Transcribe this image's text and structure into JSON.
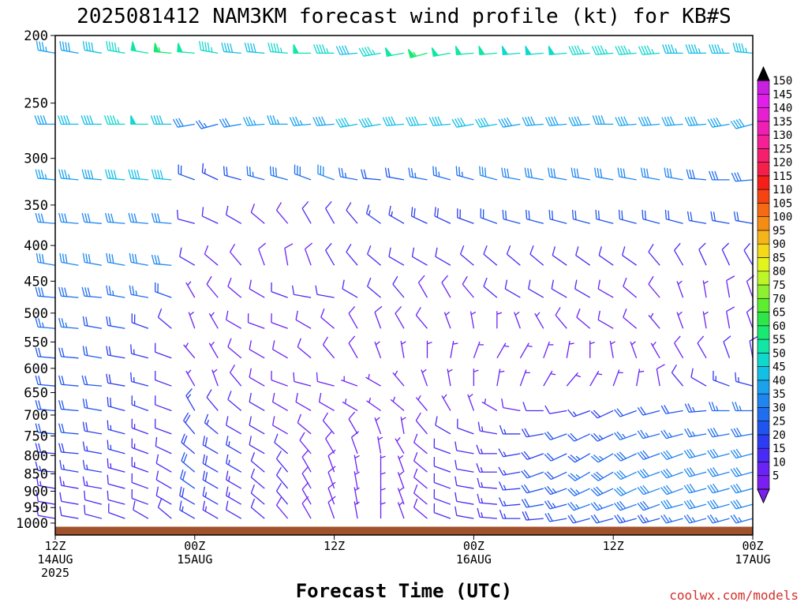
{
  "chart_data": {
    "type": "wind-barb time-height profile",
    "title": "2025081412 NAM3KM forecast wind profile (kt) for KB#S",
    "xlabel": "Forecast Time (UTC)",
    "credit": "coolwx.com/models",
    "y_axis": {
      "quantity": "pressure",
      "units": "hPa",
      "scale": "log",
      "inverted": true,
      "range": [
        200,
        1040
      ],
      "ticks": [
        200,
        250,
        300,
        350,
        400,
        450,
        500,
        550,
        600,
        650,
        700,
        750,
        800,
        850,
        900,
        950,
        1000
      ]
    },
    "x_axis": {
      "range_hours": [
        0,
        60
      ],
      "ticks": [
        {
          "hour": 0,
          "lines": [
            "12Z",
            "14AUG",
            "2025"
          ]
        },
        {
          "hour": 12,
          "lines": [
            "00Z",
            "15AUG"
          ]
        },
        {
          "hour": 24,
          "lines": [
            "12Z"
          ]
        },
        {
          "hour": 36,
          "lines": [
            "00Z",
            "16AUG"
          ]
        },
        {
          "hour": 48,
          "lines": [
            "12Z"
          ]
        },
        {
          "hour": 60,
          "lines": [
            "00Z",
            "17AUG"
          ]
        }
      ]
    },
    "ground": {
      "pressure": 1012,
      "color": "#a0522d"
    },
    "colorbar": {
      "levels": [
        5,
        10,
        15,
        20,
        25,
        30,
        35,
        40,
        45,
        50,
        55,
        60,
        65,
        70,
        75,
        80,
        85,
        90,
        95,
        100,
        105,
        110,
        115,
        120,
        125,
        130,
        135,
        140,
        145,
        150
      ],
      "colors": [
        "#7a1ff0",
        "#6a22f5",
        "#4a2af5",
        "#2d3cf0",
        "#1f55ee",
        "#1f6ef0",
        "#1f86f0",
        "#1aa2ee",
        "#14bfe6",
        "#10d8cc",
        "#10e6a6",
        "#1ae870",
        "#2ee64a",
        "#5eee30",
        "#8ef030",
        "#bef528",
        "#e2f51e",
        "#f5d81a",
        "#f5b41a",
        "#f58c14",
        "#f56a12",
        "#f54412",
        "#f51f1a",
        "#f51f4a",
        "#f51f6e",
        "#f51f96",
        "#f01fb4",
        "#e61fd2",
        "#e21fea",
        "#c81fe0"
      ]
    },
    "levels_hpa": [
      212,
      268,
      322,
      372,
      427,
      475,
      526,
      580,
      636,
      690,
      745,
      795,
      845,
      892,
      940,
      985
    ],
    "times_hours": [
      0,
      2,
      4,
      6,
      8,
      10,
      12,
      14,
      16,
      18,
      20,
      22,
      24,
      26,
      28,
      30,
      32,
      34,
      36,
      38,
      40,
      42,
      44,
      46,
      48,
      50,
      52,
      54,
      56,
      58,
      60
    ],
    "wind": [
      {
        "p": 212,
        "dir": [
          280,
          280,
          280,
          280,
          280,
          275,
          275,
          280,
          275,
          275,
          275,
          270,
          270,
          265,
          260,
          260,
          255,
          260,
          265,
          265,
          265,
          265,
          265,
          265,
          265,
          265,
          265,
          270,
          270,
          270,
          275
        ],
        "spd": [
          35,
          38,
          42,
          45,
          50,
          55,
          50,
          45,
          40,
          40,
          45,
          50,
          45,
          40,
          45,
          50,
          55,
          50,
          50,
          50,
          48,
          48,
          48,
          45,
          45,
          45,
          45,
          43,
          43,
          43,
          43
        ]
      },
      {
        "p": 268,
        "dir": [
          270,
          270,
          270,
          270,
          270,
          270,
          260,
          255,
          260,
          265,
          270,
          265,
          265,
          260,
          260,
          265,
          265,
          265,
          260,
          260,
          260,
          265,
          265,
          265,
          270,
          265,
          265,
          265,
          265,
          260,
          255
        ],
        "spd": [
          38,
          40,
          42,
          45,
          48,
          40,
          30,
          25,
          30,
          35,
          35,
          35,
          38,
          40,
          40,
          40,
          40,
          42,
          42,
          40,
          38,
          38,
          38,
          38,
          38,
          38,
          38,
          38,
          38,
          38,
          38
        ]
      },
      {
        "p": 322,
        "dir": [
          275,
          275,
          275,
          275,
          275,
          275,
          290,
          295,
          285,
          285,
          285,
          290,
          290,
          280,
          275,
          280,
          280,
          285,
          285,
          285,
          280,
          280,
          280,
          280,
          280,
          280,
          280,
          280,
          275,
          270,
          265
        ],
        "spd": [
          35,
          35,
          38,
          40,
          42,
          40,
          20,
          15,
          22,
          25,
          28,
          28,
          30,
          25,
          22,
          22,
          25,
          25,
          25,
          30,
          30,
          30,
          30,
          30,
          32,
          32,
          32,
          30,
          28,
          28,
          28
        ]
      },
      {
        "p": 372,
        "dir": [
          275,
          275,
          275,
          275,
          275,
          275,
          285,
          295,
          300,
          310,
          320,
          330,
          330,
          320,
          305,
          300,
          295,
          295,
          290,
          290,
          285,
          285,
          285,
          285,
          285,
          285,
          285,
          285,
          280,
          280,
          280
        ],
        "spd": [
          30,
          30,
          32,
          32,
          32,
          30,
          12,
          10,
          10,
          8,
          8,
          10,
          12,
          12,
          15,
          15,
          18,
          18,
          18,
          20,
          20,
          20,
          22,
          22,
          22,
          22,
          22,
          22,
          22,
          22,
          22
        ]
      },
      {
        "p": 427,
        "dir": [
          280,
          280,
          280,
          280,
          280,
          275,
          300,
          310,
          320,
          340,
          350,
          340,
          330,
          320,
          310,
          300,
          300,
          300,
          310,
          310,
          310,
          310,
          305,
          305,
          305,
          305,
          320,
          330,
          335,
          335,
          330
        ],
        "spd": [
          30,
          30,
          30,
          30,
          30,
          30,
          10,
          8,
          8,
          8,
          8,
          8,
          10,
          10,
          12,
          12,
          12,
          12,
          12,
          12,
          12,
          12,
          12,
          10,
          10,
          10,
          10,
          10,
          10,
          10,
          10
        ]
      },
      {
        "p": 475,
        "dir": [
          275,
          275,
          275,
          280,
          280,
          290,
          330,
          320,
          310,
          300,
          290,
          280,
          280,
          300,
          310,
          320,
          330,
          330,
          320,
          310,
          300,
          300,
          300,
          300,
          300,
          310,
          320,
          340,
          350,
          350,
          340
        ],
        "spd": [
          28,
          28,
          28,
          25,
          25,
          20,
          6,
          8,
          8,
          8,
          10,
          10,
          10,
          10,
          10,
          10,
          8,
          8,
          8,
          10,
          10,
          10,
          10,
          10,
          8,
          8,
          8,
          6,
          6,
          8,
          8
        ]
      },
      {
        "p": 526,
        "dir": [
          275,
          275,
          280,
          280,
          290,
          310,
          340,
          330,
          300,
          290,
          290,
          300,
          310,
          330,
          340,
          330,
          320,
          340,
          350,
          0,
          340,
          330,
          320,
          310,
          300,
          310,
          320,
          340,
          350,
          350,
          340
        ],
        "spd": [
          25,
          25,
          22,
          20,
          18,
          10,
          5,
          6,
          8,
          8,
          8,
          8,
          8,
          8,
          8,
          8,
          8,
          6,
          6,
          5,
          6,
          6,
          8,
          8,
          8,
          8,
          6,
          6,
          6,
          8,
          8
        ]
      },
      {
        "p": 580,
        "dir": [
          275,
          275,
          280,
          280,
          285,
          290,
          320,
          330,
          310,
          300,
          300,
          310,
          320,
          330,
          340,
          350,
          0,
          10,
          20,
          30,
          30,
          20,
          10,
          0,
          350,
          340,
          330,
          330,
          330,
          340,
          350
        ],
        "spd": [
          22,
          22,
          20,
          18,
          16,
          12,
          6,
          6,
          8,
          8,
          8,
          8,
          8,
          8,
          6,
          6,
          5,
          5,
          5,
          5,
          6,
          6,
          6,
          6,
          6,
          6,
          6,
          8,
          8,
          10,
          10
        ]
      },
      {
        "p": 636,
        "dir": [
          275,
          275,
          275,
          280,
          285,
          290,
          330,
          340,
          320,
          300,
          290,
          285,
          285,
          290,
          300,
          320,
          340,
          350,
          0,
          10,
          20,
          30,
          40,
          30,
          20,
          10,
          350,
          320,
          300,
          290,
          285
        ],
        "spd": [
          22,
          22,
          20,
          18,
          15,
          12,
          5,
          6,
          8,
          8,
          8,
          8,
          8,
          6,
          6,
          5,
          5,
          5,
          5,
          5,
          5,
          5,
          5,
          6,
          6,
          6,
          8,
          10,
          12,
          15,
          15
        ]
      },
      {
        "p": 690,
        "dir": [
          275,
          275,
          280,
          285,
          290,
          290,
          330,
          320,
          310,
          300,
          300,
          300,
          300,
          300,
          305,
          310,
          320,
          330,
          340,
          300,
          280,
          270,
          260,
          250,
          245,
          250,
          255,
          260,
          265,
          270,
          270
        ],
        "spd": [
          22,
          22,
          20,
          18,
          15,
          12,
          15,
          12,
          10,
          10,
          8,
          8,
          8,
          6,
          6,
          5,
          5,
          5,
          5,
          6,
          8,
          10,
          12,
          15,
          18,
          20,
          22,
          22,
          24,
          25,
          25
        ]
      },
      {
        "p": 745,
        "dir": [
          275,
          275,
          280,
          285,
          290,
          290,
          320,
          310,
          300,
          300,
          300,
          310,
          320,
          330,
          340,
          350,
          320,
          300,
          290,
          280,
          270,
          260,
          250,
          245,
          245,
          250,
          255,
          255,
          260,
          260,
          260
        ],
        "spd": [
          20,
          20,
          18,
          16,
          14,
          12,
          18,
          15,
          12,
          10,
          8,
          8,
          8,
          8,
          6,
          6,
          8,
          10,
          12,
          14,
          16,
          18,
          20,
          22,
          24,
          25,
          26,
          26,
          26,
          28,
          28
        ]
      },
      {
        "p": 795,
        "dir": [
          275,
          275,
          280,
          285,
          290,
          295,
          310,
          300,
          300,
          300,
          310,
          320,
          330,
          340,
          350,
          330,
          310,
          290,
          280,
          270,
          260,
          250,
          245,
          240,
          240,
          245,
          250,
          250,
          255,
          255,
          255
        ],
        "spd": [
          18,
          18,
          16,
          15,
          14,
          12,
          18,
          18,
          15,
          12,
          10,
          8,
          8,
          8,
          6,
          6,
          8,
          10,
          12,
          14,
          16,
          18,
          22,
          24,
          26,
          28,
          28,
          30,
          30,
          30,
          30
        ]
      },
      {
        "p": 845,
        "dir": [
          275,
          280,
          280,
          285,
          290,
          300,
          310,
          300,
          300,
          310,
          320,
          330,
          340,
          350,
          0,
          340,
          310,
          290,
          280,
          270,
          260,
          250,
          245,
          240,
          240,
          245,
          250,
          250,
          255,
          255,
          255
        ],
        "spd": [
          16,
          16,
          15,
          14,
          13,
          12,
          20,
          18,
          15,
          12,
          10,
          8,
          8,
          6,
          6,
          6,
          8,
          10,
          12,
          14,
          16,
          20,
          22,
          25,
          28,
          30,
          30,
          32,
          32,
          32,
          32
        ]
      },
      {
        "p": 892,
        "dir": [
          280,
          280,
          280,
          285,
          290,
          300,
          305,
          300,
          300,
          310,
          320,
          330,
          340,
          350,
          0,
          340,
          310,
          290,
          280,
          275,
          265,
          255,
          250,
          245,
          245,
          245,
          250,
          250,
          255,
          255,
          255
        ],
        "spd": [
          14,
          14,
          13,
          12,
          12,
          12,
          20,
          18,
          14,
          12,
          10,
          8,
          8,
          6,
          6,
          6,
          8,
          10,
          12,
          14,
          16,
          20,
          24,
          26,
          28,
          30,
          30,
          32,
          32,
          32,
          32
        ]
      },
      {
        "p": 940,
        "dir": [
          280,
          280,
          285,
          285,
          290,
          300,
          300,
          300,
          300,
          310,
          320,
          330,
          340,
          350,
          0,
          340,
          310,
          290,
          280,
          275,
          265,
          260,
          255,
          250,
          250,
          250,
          250,
          255,
          255,
          255,
          255
        ],
        "spd": [
          12,
          12,
          12,
          12,
          12,
          12,
          18,
          16,
          14,
          12,
          10,
          8,
          8,
          6,
          6,
          6,
          8,
          10,
          12,
          14,
          16,
          20,
          24,
          26,
          26,
          28,
          28,
          30,
          30,
          30,
          30
        ]
      },
      {
        "p": 985,
        "dir": [
          280,
          280,
          285,
          290,
          300,
          310,
          300,
          300,
          300,
          310,
          320,
          330,
          340,
          350,
          0,
          340,
          310,
          290,
          280,
          275,
          270,
          265,
          260,
          255,
          255,
          255,
          255,
          255,
          255,
          255,
          255
        ],
        "spd": [
          10,
          10,
          10,
          10,
          10,
          10,
          15,
          14,
          12,
          10,
          8,
          8,
          8,
          6,
          6,
          6,
          8,
          10,
          12,
          14,
          15,
          18,
          20,
          22,
          22,
          24,
          24,
          25,
          25,
          25,
          25
        ]
      }
    ]
  }
}
